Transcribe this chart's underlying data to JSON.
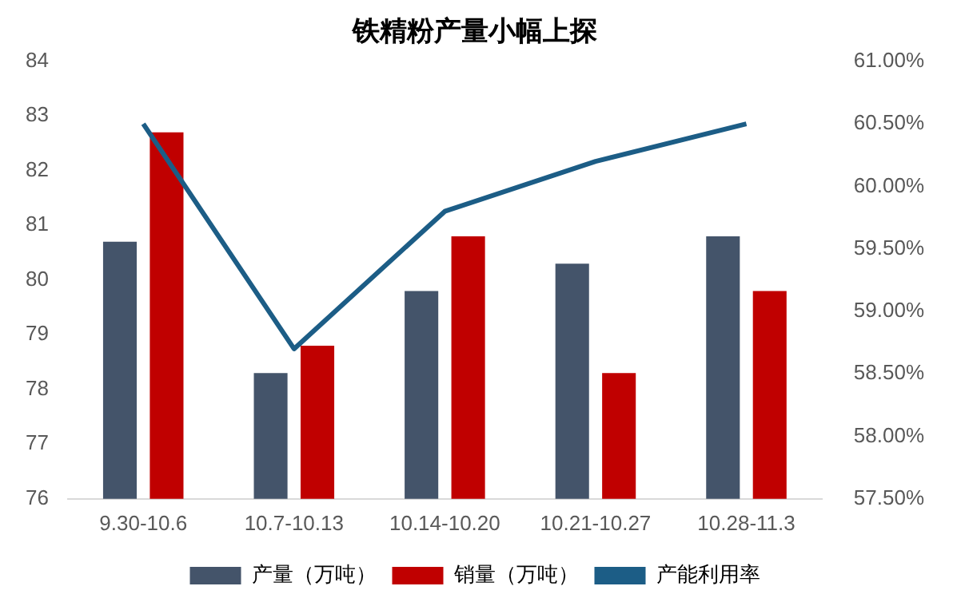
{
  "chart_data": {
    "type": "bar",
    "title": "铁精粉产量小幅上探",
    "categories": [
      "9.30-10.6",
      "10.7-10.13",
      "10.14-10.20",
      "10.21-10.27",
      "10.28-11.3"
    ],
    "series": [
      {
        "name": "产量（万吨）",
        "color": "#44546a",
        "values": [
          80.7,
          78.3,
          79.8,
          80.3,
          80.8
        ]
      },
      {
        "name": "销量（万吨）",
        "color": "#c00000",
        "values": [
          82.7,
          78.8,
          80.8,
          78.3,
          79.8
        ]
      },
      {
        "name": "产能利用率",
        "type": "line",
        "axis": "y2",
        "color": "#1c5d86",
        "values": [
          60.5,
          58.7,
          59.8,
          60.2,
          60.5
        ]
      }
    ],
    "ylim": [
      76,
      84
    ],
    "yticks": [
      76,
      77,
      78,
      79,
      80,
      81,
      82,
      83,
      84
    ],
    "y2lim": [
      57.5,
      61
    ],
    "y2ticks": [
      {
        "value": 57.5,
        "label": "57.50%"
      },
      {
        "value": 58,
        "label": "58.00%"
      },
      {
        "value": 58.5,
        "label": "58.50%"
      },
      {
        "value": 59,
        "label": "59.00%"
      },
      {
        "value": 59.5,
        "label": "59.50%"
      },
      {
        "value": 60,
        "label": "60.00%"
      },
      {
        "value": 60.5,
        "label": "60.50%"
      },
      {
        "value": 61,
        "label": "61.00%"
      }
    ],
    "grid": false,
    "legend": "bottom",
    "marker": "none"
  }
}
